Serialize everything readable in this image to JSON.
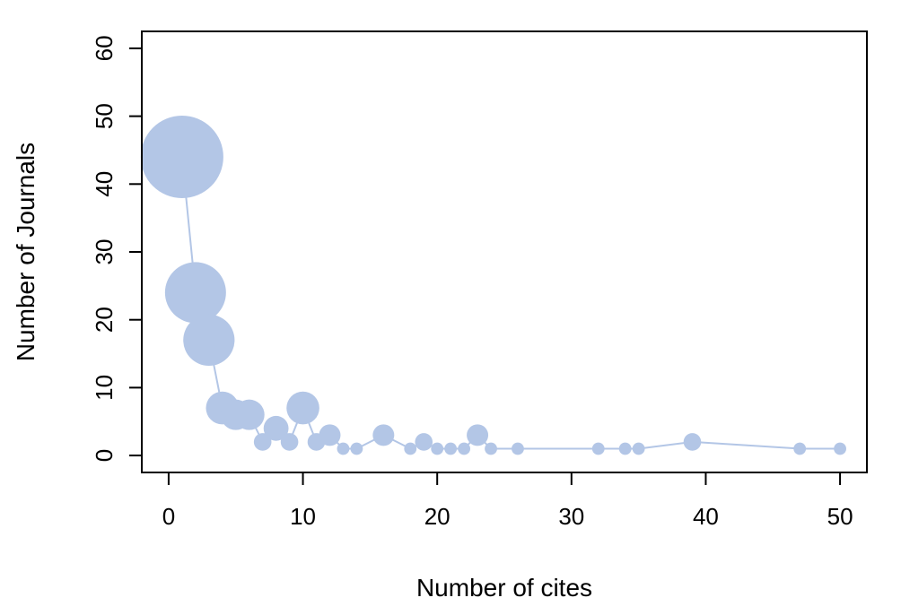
{
  "chart_data": {
    "type": "scatter",
    "title": "",
    "xlabel": "Number of cites",
    "ylabel": "Number of Journals",
    "xlim": [
      -2,
      52
    ],
    "ylim": [
      -2.5,
      62.5
    ],
    "xticks": [
      0,
      10,
      20,
      30,
      40,
      50
    ],
    "yticks": [
      0,
      10,
      20,
      30,
      40,
      50,
      60
    ],
    "grid": false,
    "legend": "none",
    "connected_line": true,
    "point_size_encodes": "Number of Journals",
    "colors": {
      "series": "#b3c6e6",
      "axis": "#000000",
      "background": "#ffffff"
    },
    "series": [
      {
        "x": [
          1,
          2,
          3,
          4,
          5,
          6,
          7,
          8,
          9,
          10,
          11,
          12,
          13,
          14,
          16,
          18,
          19,
          20,
          21,
          22,
          23,
          24,
          26,
          32,
          34,
          35,
          39,
          47,
          50
        ],
        "y": [
          44,
          24,
          17,
          7,
          6,
          6,
          2,
          4,
          2,
          7,
          2,
          3,
          1,
          1,
          3,
          1,
          2,
          1,
          1,
          1,
          3,
          1,
          1,
          1,
          1,
          1,
          2,
          1,
          1
        ]
      }
    ]
  }
}
